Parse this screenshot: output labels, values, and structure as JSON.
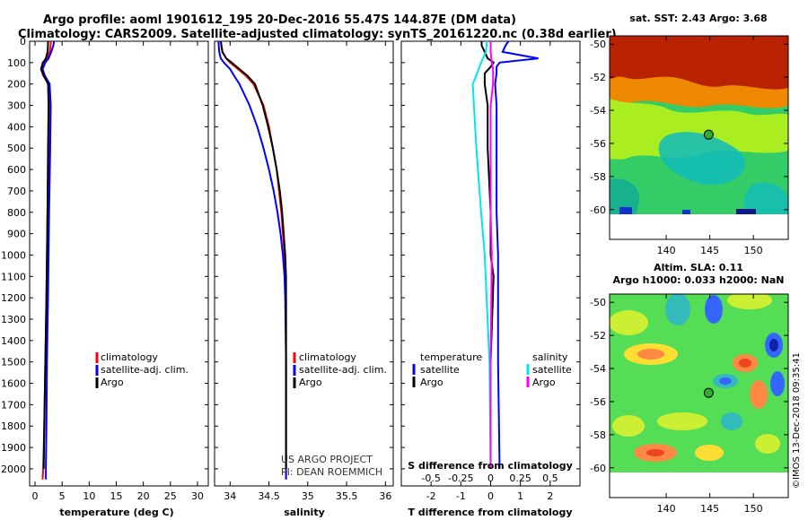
{
  "title": {
    "line1": "Argo profile: aoml 1901612_195 20-Dec-2016 55.47S 144.87E (DM data)",
    "line2": "Climatology: CARS2009. Satellite-adjusted climatology: synTS_20161220.nc (0.38d earlier)"
  },
  "colors": {
    "climatology": "#ff0000",
    "satellite": "#0000ff",
    "argo": "#000000",
    "temperature_sat_diff": "#0000ff",
    "salinity_sat_diff": "#00e5ee",
    "salinity_argo_diff": "#ff00ff"
  },
  "credits": {
    "line1": "US ARGO PROJECT",
    "line2": "PI: DEAN ROEMMICH"
  },
  "chart_data": [
    {
      "id": "temperature",
      "type": "line",
      "xlabel": "temperature (deg C)",
      "xlim": [
        -1,
        32
      ],
      "xticks": [
        0,
        5,
        10,
        15,
        20,
        25,
        30
      ],
      "ylim": [
        2080,
        0
      ],
      "yticks": [
        0,
        100,
        200,
        300,
        400,
        500,
        600,
        700,
        800,
        900,
        1000,
        1100,
        1200,
        1300,
        1400,
        1500,
        1600,
        1700,
        1800,
        1900,
        2000
      ],
      "legend": [
        "climatology",
        "satellite-adj. clim.",
        "Argo"
      ],
      "series": [
        {
          "name": "climatology",
          "color": "#ff0000",
          "depth": [
            0,
            20,
            50,
            80,
            100,
            130,
            160,
            200,
            300,
            500,
            800,
            1000,
            1200,
            1500,
            1800,
            2000,
            2050
          ],
          "values": [
            2.9,
            2.9,
            2.7,
            2.2,
            1.4,
            1.1,
            1.5,
            2.5,
            2.6,
            2.5,
            2.3,
            2.2,
            2.1,
            1.9,
            1.7,
            1.5,
            1.4
          ]
        },
        {
          "name": "satellite-adj. clim.",
          "color": "#0000ff",
          "depth": [
            0,
            20,
            50,
            80,
            100,
            130,
            160,
            200,
            300,
            500,
            800,
            1000,
            1200,
            1500,
            1800,
            2000,
            2050
          ],
          "values": [
            3.5,
            3.4,
            3.0,
            2.5,
            1.9,
            1.4,
            1.8,
            2.7,
            2.9,
            2.8,
            2.6,
            2.5,
            2.4,
            2.2,
            2.1,
            2.0,
            2.0
          ]
        },
        {
          "name": "Argo",
          "color": "#000000",
          "depth": [
            0,
            20,
            50,
            80,
            100,
            130,
            160,
            200,
            300,
            500,
            800,
            1000,
            1200,
            1500,
            1800,
            2000
          ],
          "values": [
            2.4,
            2.4,
            2.3,
            2.0,
            1.5,
            1.1,
            1.6,
            2.4,
            2.5,
            2.4,
            2.3,
            2.2,
            2.1,
            1.9,
            1.7,
            1.6
          ]
        }
      ]
    },
    {
      "id": "salinity",
      "type": "line",
      "xlabel": "salinity",
      "xlim": [
        33.8,
        36.1
      ],
      "xticks": [
        34,
        34.5,
        35,
        35.5,
        36
      ],
      "ylim": [
        2080,
        0
      ],
      "legend": [
        "climatology",
        "satellite-adj. clim.",
        "Argo"
      ],
      "series": [
        {
          "name": "climatology",
          "color": "#ff0000",
          "depth": [
            0,
            50,
            80,
            100,
            130,
            160,
            200,
            300,
            400,
            500,
            600,
            700,
            800,
            900,
            1000,
            1100,
            1200,
            1500,
            2000,
            2050
          ],
          "values": [
            33.88,
            33.9,
            33.95,
            34.0,
            34.1,
            34.2,
            34.3,
            34.43,
            34.5,
            34.55,
            34.6,
            34.63,
            34.66,
            34.68,
            34.7,
            34.71,
            34.72,
            34.72,
            34.72,
            34.72
          ]
        },
        {
          "name": "satellite-adj. clim.",
          "color": "#0000ff",
          "depth": [
            0,
            50,
            80,
            100,
            130,
            160,
            200,
            300,
            400,
            500,
            600,
            700,
            800,
            900,
            1000,
            1100,
            1200,
            1500,
            2000,
            2050
          ],
          "values": [
            33.85,
            33.86,
            33.88,
            33.92,
            34.0,
            34.05,
            34.12,
            34.25,
            34.35,
            34.43,
            34.5,
            34.56,
            34.61,
            34.65,
            34.68,
            34.7,
            34.71,
            34.72,
            34.72,
            34.72
          ]
        },
        {
          "name": "Argo",
          "color": "#000000",
          "depth": [
            0,
            50,
            80,
            100,
            130,
            160,
            200,
            300,
            400,
            500,
            600,
            700,
            800,
            900,
            1000,
            1100,
            1200,
            1500,
            2000
          ],
          "values": [
            33.88,
            33.9,
            33.95,
            34.02,
            34.12,
            34.22,
            34.32,
            34.42,
            34.49,
            34.55,
            34.6,
            34.64,
            34.67,
            34.69,
            34.71,
            34.72,
            34.72,
            34.72,
            34.72
          ]
        }
      ]
    },
    {
      "id": "difference",
      "type": "line",
      "xlabel": "T difference from climatology",
      "xlabel_top": "S difference from climatology",
      "xlim": [
        -3,
        3
      ],
      "xticks": [
        -2,
        -1,
        0,
        1,
        2
      ],
      "s_xlim": [
        -0.75,
        0.75
      ],
      "s_ticks": [
        -0.5,
        -0.25,
        0,
        0.25,
        0.5
      ],
      "s_tick_labels": [
        "-0.5",
        "-0.25",
        "0",
        "0.25",
        "0.5"
      ],
      "ylim": [
        2080,
        0
      ],
      "legend_left_title": "temperature",
      "legend_right_title": "salinity",
      "legend": [
        "satellite",
        "Argo",
        "satellite",
        "Argo"
      ],
      "series": [
        {
          "name": "temperature satellite",
          "color": "#0000ff",
          "units": "T",
          "depth": [
            0,
            20,
            50,
            80,
            100,
            120,
            150,
            200,
            300,
            500,
            800,
            1000,
            1500,
            2000
          ],
          "values": [
            0.6,
            0.5,
            0.4,
            1.6,
            0.3,
            0.2,
            0.2,
            0.15,
            0.2,
            0.2,
            0.2,
            0.25,
            0.25,
            0.3
          ]
        },
        {
          "name": "temperature Argo",
          "color": "#000000",
          "units": "T",
          "depth": [
            0,
            20,
            50,
            80,
            100,
            120,
            150,
            200,
            300,
            500,
            800,
            1000,
            1100,
            1500,
            2000
          ],
          "values": [
            -0.3,
            -0.3,
            -0.2,
            -0.1,
            0.1,
            0.0,
            -0.2,
            -0.2,
            -0.1,
            -0.1,
            0.0,
            0.0,
            0.1,
            0.0,
            0.0
          ]
        },
        {
          "name": "salinity satellite",
          "color": "#00e5ee",
          "units": "S",
          "depth": [
            0,
            50,
            100,
            130,
            160,
            200,
            300,
            500,
            800,
            1000,
            1500,
            2000
          ],
          "values": [
            -0.03,
            -0.04,
            -0.08,
            -0.1,
            -0.12,
            -0.15,
            -0.14,
            -0.12,
            -0.08,
            -0.05,
            -0.01,
            0.0
          ]
        },
        {
          "name": "salinity Argo",
          "color": "#ff00ff",
          "units": "S",
          "depth": [
            0,
            50,
            100,
            130,
            160,
            200,
            300,
            500,
            800,
            1000,
            1500,
            2000
          ],
          "values": [
            0.0,
            0.0,
            0.01,
            0.02,
            0.02,
            0.02,
            0.0,
            0.0,
            0.0,
            0.01,
            0.0,
            0.0
          ]
        }
      ]
    },
    {
      "id": "sst-map",
      "type": "heatmap",
      "title": "sat. SST: 2.43 Argo: 3.68",
      "xlim": [
        133.5,
        154
      ],
      "ylim": [
        -61.8,
        -49.5
      ],
      "xticks": [
        140,
        145,
        150
      ],
      "yticks": [
        -50,
        -52,
        -54,
        -56,
        -58,
        -60
      ],
      "data_extent": [
        -60,
        -49.5
      ],
      "marker": {
        "lon": 144.87,
        "lat": -55.47
      },
      "regions": [
        {
          "label": "warm north",
          "color": "#b82200",
          "lat": [
            -53,
            -49.5
          ]
        },
        {
          "label": "transition",
          "color": "#ee8800",
          "lat": [
            -54,
            -53
          ]
        },
        {
          "label": "mid",
          "color": "#aaee22",
          "lat": [
            -56.5,
            -54
          ]
        },
        {
          "label": "cold south",
          "color": "#33cc66",
          "lat": [
            -60,
            -56.5
          ]
        }
      ]
    },
    {
      "id": "sla-map",
      "type": "heatmap",
      "title_line1": "Altim. SLA: 0.11",
      "title_line2": "Argo h1000: 0.033 h2000: NaN",
      "xlim": [
        133.5,
        154
      ],
      "ylim": [
        -61.8,
        -49.5
      ],
      "xticks": [
        140,
        145,
        150
      ],
      "yticks": [
        -50,
        -52,
        -54,
        -56,
        -58,
        -60
      ],
      "data_extent": [
        -60,
        -49.5
      ],
      "marker": {
        "lon": 144.87,
        "lat": -55.47
      },
      "regions": [
        {
          "label": "background",
          "color": "#55dd55"
        },
        {
          "label": "high",
          "color": "#ff8844"
        },
        {
          "label": "low",
          "color": "#3366ff"
        }
      ]
    }
  ],
  "stamp": "©IMOS 13-Dec-2018 09:35:41"
}
